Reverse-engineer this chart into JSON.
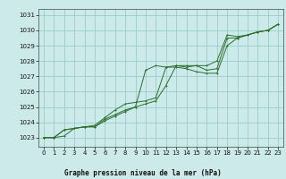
{
  "bg_color": "#cceae9",
  "grid_color": "#99cccc",
  "line_color": "#2d6e2d",
  "xlabel": "Graphe pression niveau de la mer (hPa)",
  "ylim": [
    1022.4,
    1031.4
  ],
  "xlim": [
    -0.5,
    23.5
  ],
  "yticks": [
    1023,
    1024,
    1025,
    1026,
    1027,
    1028,
    1029,
    1030,
    1031
  ],
  "xticks": [
    0,
    1,
    2,
    3,
    4,
    5,
    6,
    7,
    8,
    9,
    10,
    11,
    12,
    13,
    14,
    15,
    16,
    17,
    18,
    19,
    20,
    21,
    22,
    23
  ],
  "line1_x": [
    0,
    1,
    2,
    3,
    4,
    5,
    6,
    7,
    8,
    9,
    10,
    11,
    12,
    13,
    14,
    15,
    16,
    17,
    18,
    19,
    20,
    21,
    22,
    23
  ],
  "line1_y": [
    1023.0,
    1023.0,
    1023.5,
    1023.6,
    1023.7,
    1023.7,
    1024.2,
    1024.5,
    1024.8,
    1025.0,
    1027.4,
    1027.7,
    1027.6,
    1027.6,
    1027.5,
    1027.3,
    1027.2,
    1027.2,
    1029.0,
    1029.5,
    1029.7,
    1029.9,
    1030.0,
    1030.4
  ],
  "line2_x": [
    0,
    1,
    2,
    3,
    4,
    5,
    6,
    7,
    8,
    9,
    10,
    11,
    12,
    13,
    14,
    15,
    16,
    17,
    18,
    19,
    20,
    21,
    22,
    23
  ],
  "line2_y": [
    1023.0,
    1023.0,
    1023.1,
    1023.6,
    1023.7,
    1023.7,
    1024.1,
    1024.4,
    1024.7,
    1025.0,
    1025.2,
    1025.4,
    1026.4,
    1027.7,
    1027.7,
    1027.7,
    1027.4,
    1027.5,
    1029.5,
    1029.5,
    1029.7,
    1029.9,
    1030.0,
    1030.4
  ],
  "line3_x": [
    0,
    1,
    2,
    3,
    4,
    5,
    6,
    7,
    8,
    9,
    10,
    11,
    12,
    13,
    14,
    15,
    16,
    17,
    18,
    19,
    20,
    21,
    22,
    23
  ],
  "line3_y": [
    1023.0,
    1023.0,
    1023.5,
    1023.6,
    1023.7,
    1023.8,
    1024.3,
    1024.8,
    1025.2,
    1025.3,
    1025.4,
    1025.6,
    1027.6,
    1027.7,
    1027.6,
    1027.7,
    1027.7,
    1028.0,
    1029.7,
    1029.6,
    1029.7,
    1029.9,
    1030.0,
    1030.4
  ],
  "lw": 0.7,
  "ms": 2.0,
  "tick_labelsize": 5,
  "xlabel_fontsize": 5.5
}
